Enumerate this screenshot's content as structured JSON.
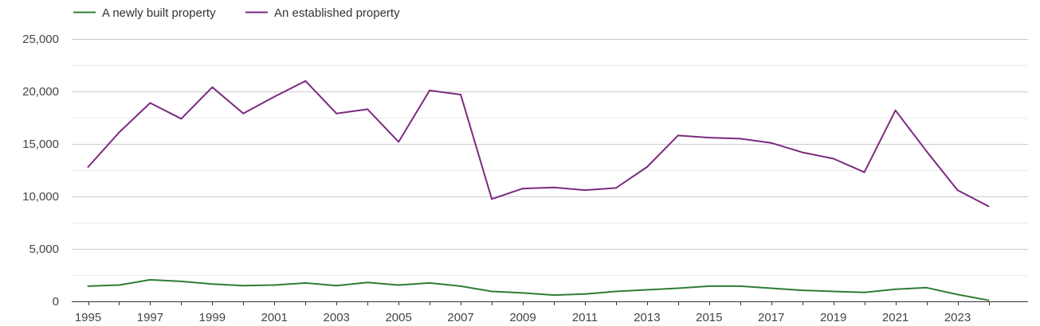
{
  "chart_data": {
    "type": "line",
    "x": [
      1995,
      1996,
      1997,
      1998,
      1999,
      2000,
      2001,
      2002,
      2003,
      2004,
      2005,
      2006,
      2007,
      2008,
      2009,
      2010,
      2011,
      2012,
      2013,
      2014,
      2015,
      2016,
      2017,
      2018,
      2019,
      2020,
      2021,
      2022,
      2023,
      2024
    ],
    "series": [
      {
        "name": "A newly built property",
        "color": "#2e7d32",
        "values": [
          1450,
          1550,
          2050,
          1900,
          1650,
          1500,
          1550,
          1750,
          1500,
          1800,
          1550,
          1750,
          1450,
          950,
          800,
          600,
          700,
          950,
          1100,
          1250,
          1450,
          1450,
          1250,
          1050,
          950,
          850,
          1150,
          1300,
          650,
          100
        ]
      },
      {
        "name": "An established property",
        "color": "#7b2a7f",
        "values": [
          12800,
          16100,
          18900,
          17400,
          20400,
          17900,
          19500,
          21000,
          17900,
          18300,
          15200,
          20100,
          19700,
          9750,
          10750,
          10850,
          10600,
          10800,
          12800,
          15800,
          15600,
          15500,
          15100,
          14200,
          13600,
          12300,
          18200,
          14300,
          10600,
          9050
        ]
      }
    ],
    "x_ticks": [
      "1995",
      "1997",
      "1999",
      "2001",
      "2003",
      "2005",
      "2007",
      "2009",
      "2011",
      "2013",
      "2015",
      "2017",
      "2019",
      "2021",
      "2023"
    ],
    "y_ticks": [
      "0",
      "5,000",
      "10,000",
      "15,000",
      "20,000",
      "25,000"
    ],
    "ylim": [
      0,
      25000
    ],
    "grid": true,
    "legend_position": "top-left",
    "title": "",
    "xlabel": "",
    "ylabel": ""
  }
}
